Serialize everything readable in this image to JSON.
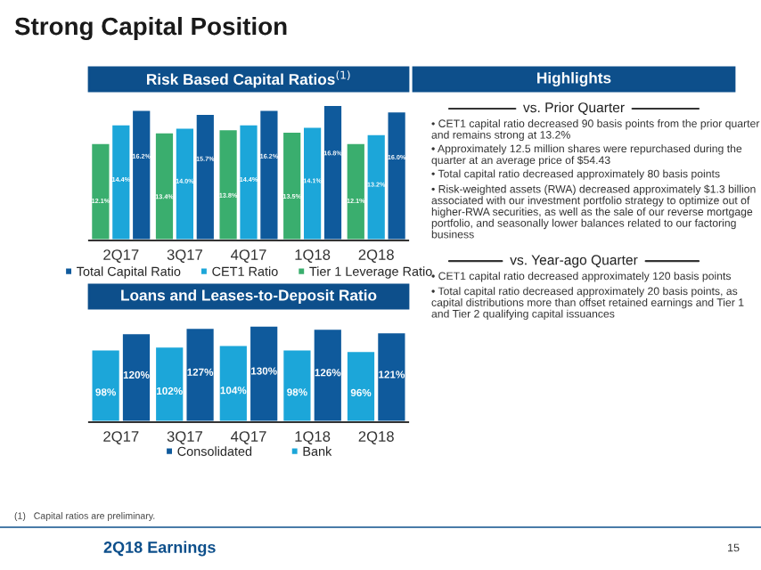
{
  "chart_data": [
    {
      "type": "other",
      "title": "Strong Capital Position",
      "annotations": [
        "2Q18 Earnings",
        "15"
      ]
    },
    {
      "type": "bar",
      "title": "Risk Based Capital Ratios$^{(1)}$",
      "categories": [
        "2Q17",
        "3Q17",
        "4Q17",
        "1Q18",
        "2Q18"
      ],
      "series": [
        {
          "name": "Tier 1 Leverage Ratio",
          "color": "#3aae6e",
          "values": [
            12.1,
            13.4,
            13.8,
            13.5,
            12.1
          ],
          "value_labels": [
            "12.1%",
            "13.4%",
            "13.8%",
            "13.5%",
            "12.1%"
          ]
        },
        {
          "name": "CET1 Ratio",
          "color": "#1ca6d9",
          "values": [
            14.4,
            14.0,
            14.4,
            14.1,
            13.2
          ],
          "value_labels": [
            "14.4%",
            "14.0%",
            "14.4%",
            "14.1%",
            "13.2%"
          ]
        },
        {
          "name": "Total Capital Ratio",
          "color": "#0f5a9c",
          "values": [
            16.2,
            15.7,
            16.2,
            16.8,
            16.0
          ],
          "value_labels": [
            "16.2%",
            "15.7%",
            "16.2%",
            "16.8%",
            "16.0%"
          ]
        }
      ],
      "legend": "bottom",
      "annotations": [
        "(1)   Capital ratios are preliminary."
      ]
    },
    {
      "type": "bar",
      "title": "Loans and Leases-to-Deposit Ratio",
      "categories": [
        "2Q17",
        "3Q17",
        "4Q17",
        "1Q18",
        "2Q18"
      ],
      "series": [
        {
          "name": "Bank",
          "color": "#1ca6d9",
          "values": [
            98,
            102,
            104,
            98,
            96
          ],
          "value_labels": [
            "98%",
            "102%",
            "104%",
            "98%",
            "96%"
          ]
        },
        {
          "name": "Consolidated",
          "color": "#0f5a9c",
          "values": [
            120,
            127,
            130,
            126,
            121
          ],
          "value_labels": [
            "120%",
            "127%",
            "130%",
            "126%",
            "121%"
          ]
        }
      ],
      "legend": "bottom"
    },
    {
      "type": "other",
      "title": "Highlights",
      "annotations": [
        "vs. Prior Quarter",
        "• CET1 capital ratio decreased 90 basis points from the prior quarter and remains strong at 13.2%",
        "• Approximately 12.5 million shares were repurchased during the quarter at an average price of $54.43",
        "• Total capital ratio decreased approximately 80 basis points",
        "• Risk-weighted assets (RWA) decreased approximately $1.3 billion associated with our investment portfolio strategy to optimize out of higher-RWA securities, as well as the sale of our reverse mortgage portfolio, and seasonally lower balances related to our factoring business",
        "vs. Year-ago Quarter",
        "• CET1 capital ratio decreased approximately 120 basis points",
        "• Total capital ratio decreased approximately 20 basis points, as capital distributions more than offset retained earnings and Tier 1 and Tier 2 qualifying capital issuances"
      ]
    }
  ]
}
